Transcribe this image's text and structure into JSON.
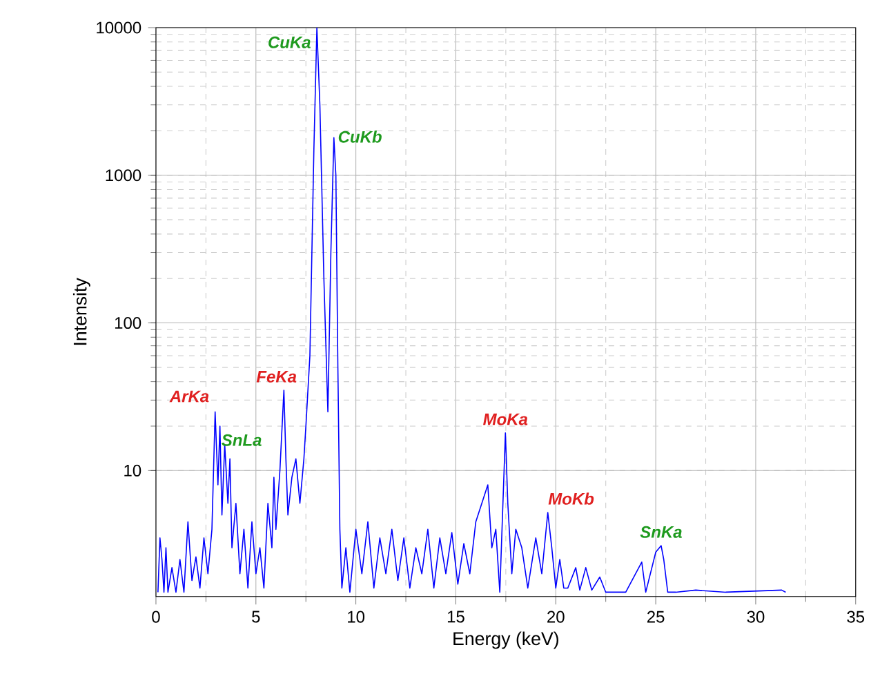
{
  "chart_data": {
    "type": "line",
    "xlabel": "Energy (keV)",
    "ylabel": "Intensity",
    "log": "y",
    "grid": true,
    "xlim": [
      0,
      35
    ],
    "ylim": [
      1.4,
      10000
    ],
    "xticks": [
      0,
      5,
      10,
      15,
      20,
      25,
      30,
      35
    ],
    "yticks": [
      10,
      100,
      1000,
      10000
    ],
    "series": [
      {
        "color": "#0000ff",
        "x": [
          0.1,
          0.2,
          0.3,
          0.4,
          0.5,
          0.6,
          0.8,
          1.0,
          1.2,
          1.4,
          1.6,
          1.8,
          2.0,
          2.2,
          2.4,
          2.6,
          2.8,
          2.96,
          3.1,
          3.2,
          3.3,
          3.44,
          3.6,
          3.7,
          3.8,
          4.0,
          4.2,
          4.4,
          4.6,
          4.8,
          5.0,
          5.2,
          5.4,
          5.6,
          5.8,
          5.9,
          6.0,
          6.2,
          6.4,
          6.5,
          6.6,
          6.8,
          7.0,
          7.2,
          7.4,
          7.5,
          7.7,
          7.9,
          8.05,
          8.2,
          8.4,
          8.6,
          8.75,
          8.9,
          9.0,
          9.1,
          9.2,
          9.3,
          9.5,
          9.7,
          10.0,
          10.3,
          10.6,
          10.9,
          11.2,
          11.5,
          11.8,
          12.1,
          12.4,
          12.7,
          13.0,
          13.3,
          13.6,
          13.9,
          14.2,
          14.5,
          14.8,
          15.1,
          15.4,
          15.7,
          16.0,
          16.3,
          16.6,
          16.8,
          17.0,
          17.2,
          17.48,
          17.6,
          17.8,
          18.0,
          18.3,
          18.6,
          19.0,
          19.3,
          19.6,
          19.8,
          20.0,
          20.2,
          20.4,
          20.6,
          21.0,
          21.2,
          21.5,
          21.8,
          22.2,
          22.5,
          23.5,
          24.3,
          24.5,
          25.0,
          25.27,
          25.4,
          25.6,
          26.0,
          27.0,
          28.5,
          31.3,
          31.5
        ],
        "values": [
          1.5,
          3.5,
          2.5,
          1.5,
          3,
          1.5,
          2.2,
          1.5,
          2.5,
          1.5,
          4.5,
          1.8,
          2.6,
          1.6,
          3.5,
          2,
          4,
          25,
          8,
          20,
          5,
          15,
          6,
          12,
          3,
          6,
          2,
          4,
          1.6,
          4.5,
          2,
          3,
          1.6,
          6,
          3,
          9,
          4,
          10,
          35,
          12,
          5,
          9,
          12,
          6,
          12,
          20,
          60,
          1500,
          10000,
          3000,
          200,
          25,
          300,
          1800,
          1000,
          50,
          4,
          1.6,
          3,
          1.5,
          4,
          2,
          4.5,
          1.6,
          3.5,
          2,
          4,
          1.8,
          3.5,
          1.6,
          3,
          2,
          4,
          1.6,
          3.5,
          2,
          3.8,
          1.7,
          3.2,
          2,
          4.5,
          6,
          8,
          3,
          4,
          1.5,
          18,
          6,
          2,
          4,
          3,
          1.6,
          3.5,
          2,
          5.2,
          3,
          1.6,
          2.5,
          1.6,
          1.6,
          2.2,
          1.55,
          2.2,
          1.55,
          1.9,
          1.5,
          1.5,
          2.4,
          1.5,
          2.8,
          3.1,
          2.5,
          1.5,
          1.5,
          1.55,
          1.5,
          1.55,
          1.5
        ]
      }
    ],
    "annotations": [
      {
        "text": "CuKa",
        "x": 8.05,
        "y": 10000
      },
      {
        "text": "CuKb",
        "x": 8.9,
        "y": 1800
      },
      {
        "text": "FeKa",
        "x": 6.4,
        "y": 35
      },
      {
        "text": "ArKa",
        "x": 2.96,
        "y": 25
      },
      {
        "text": "SnLa",
        "x": 3.44,
        "y": 15
      },
      {
        "text": "MoKa",
        "x": 17.48,
        "y": 18
      },
      {
        "text": "MoKb",
        "x": 19.6,
        "y": 5.2
      },
      {
        "text": "SnKa",
        "x": 25.27,
        "y": 3.1
      }
    ]
  }
}
